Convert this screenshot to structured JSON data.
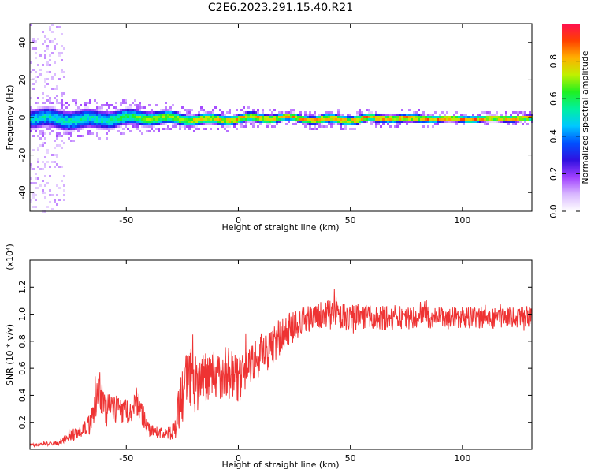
{
  "title": "C2E6.2023.291.15.40.R21",
  "colors": {
    "signal_line": "#ee3333",
    "colormap": [
      "#ffffff",
      "#d9b8ff",
      "#a040ff",
      "#3010e0",
      "#0050ff",
      "#00c8ff",
      "#00f0a0",
      "#20f020",
      "#c0f000",
      "#ffb000",
      "#ff4000",
      "#ff1050"
    ]
  },
  "chart_data": [
    {
      "type": "heatmap",
      "title": "C2E6.2023.291.15.40.R21",
      "xlabel": "Height of straight line (km)",
      "ylabel": "Frequency (Hz)",
      "xlim": [
        -93,
        131
      ],
      "ylim": [
        -50,
        50
      ],
      "xticks": [
        -50,
        0,
        50,
        100
      ],
      "yticks": [
        -40,
        -20,
        0,
        20,
        40
      ],
      "colorbar": {
        "label": "Normalized spectral amplitude",
        "range": [
          0,
          1
        ],
        "ticks": [
          "0.0",
          "0.2",
          "0.4",
          "0.6",
          "0.8"
        ],
        "tick_values": [
          0.0,
          0.2,
          0.4,
          0.6,
          0.8
        ]
      },
      "description_series": {
        "x": [
          -93,
          -80,
          -70,
          -60,
          -50,
          -40,
          -30,
          -20,
          -10,
          0,
          10,
          20,
          30,
          40,
          50,
          60,
          70,
          80,
          90,
          100,
          110,
          120,
          131
        ],
        "band_halfwidth_hz": [
          6,
          6,
          6,
          5.5,
          5,
          4.5,
          4,
          3.5,
          3.5,
          3,
          3,
          2.5,
          2.5,
          3,
          3,
          2.5,
          2.5,
          2.5,
          2,
          2,
          2,
          2,
          2
        ],
        "peak_amplitude": [
          0.55,
          0.6,
          0.6,
          0.62,
          0.7,
          0.75,
          0.82,
          0.88,
          0.9,
          0.9,
          0.92,
          0.93,
          0.93,
          0.92,
          0.93,
          0.95,
          0.95,
          0.95,
          0.96,
          0.96,
          0.96,
          0.96,
          0.96
        ]
      }
    },
    {
      "type": "line",
      "xlabel": "Height of straight line (km)",
      "ylabel": "SNR (10 * v/v)",
      "y_multiplier": "(x10⁴)",
      "xlim": [
        -93,
        131
      ],
      "ylim": [
        0,
        1.4
      ],
      "xticks": [
        -50,
        0,
        50,
        100
      ],
      "yticks": [
        0.2,
        0.4,
        0.6,
        0.8,
        1.0,
        1.2
      ],
      "series": [
        {
          "x": [
            -93,
            -85,
            -80,
            -75,
            -70,
            -65,
            -62,
            -60,
            -55,
            -50,
            -48,
            -45,
            -40,
            -35,
            -30,
            -28,
            -25,
            -22,
            -20,
            -15,
            -10,
            -5,
            0,
            5,
            10,
            15,
            20,
            25,
            30,
            35,
            40,
            43,
            45,
            50,
            55,
            60,
            65,
            70,
            75,
            80,
            83,
            85,
            90,
            95,
            100,
            105,
            110,
            115,
            120,
            125,
            131
          ],
          "values": [
            0.03,
            0.04,
            0.05,
            0.1,
            0.14,
            0.22,
            0.48,
            0.3,
            0.3,
            0.28,
            0.3,
            0.35,
            0.15,
            0.12,
            0.12,
            0.18,
            0.4,
            0.55,
            0.48,
            0.52,
            0.55,
            0.58,
            0.5,
            0.62,
            0.7,
            0.75,
            0.85,
            0.92,
            0.96,
            0.98,
            1.0,
            1.05,
            0.98,
            0.98,
            0.98,
            0.98,
            0.97,
            0.98,
            0.97,
            0.98,
            1.05,
            0.97,
            0.98,
            0.97,
            0.98,
            0.97,
            0.98,
            0.97,
            0.98,
            0.98,
            0.98
          ],
          "noise_amplitude": [
            0.01,
            0.015,
            0.02,
            0.04,
            0.05,
            0.1,
            0.15,
            0.12,
            0.1,
            0.1,
            0.1,
            0.12,
            0.05,
            0.04,
            0.05,
            0.12,
            0.22,
            0.25,
            0.22,
            0.2,
            0.2,
            0.2,
            0.18,
            0.15,
            0.15,
            0.15,
            0.14,
            0.12,
            0.1,
            0.1,
            0.12,
            0.15,
            0.1,
            0.1,
            0.1,
            0.09,
            0.09,
            0.09,
            0.09,
            0.09,
            0.1,
            0.09,
            0.08,
            0.08,
            0.08,
            0.08,
            0.08,
            0.08,
            0.08,
            0.08,
            0.08
          ]
        }
      ]
    }
  ]
}
